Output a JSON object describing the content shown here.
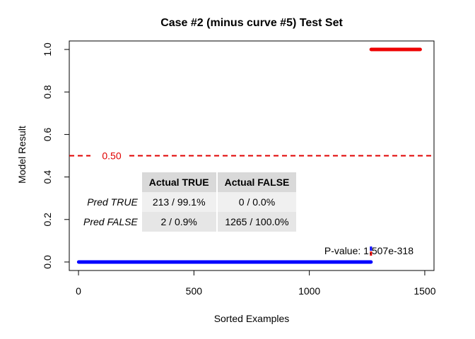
{
  "chart_data": {
    "type": "line",
    "title": "Case #2 (minus curve #5) Test Set",
    "xlabel": "Sorted Examples",
    "ylabel": "Model Result",
    "xlim": [
      -40,
      1540
    ],
    "ylim": [
      -0.04,
      1.04
    ],
    "x_ticks": [
      0,
      500,
      1000,
      1500
    ],
    "x_tick_labels": [
      "0",
      "500",
      "1000",
      "1500"
    ],
    "y_ticks": [
      0.0,
      0.2,
      0.4,
      0.6,
      0.8,
      1.0
    ],
    "y_tick_labels": [
      "0.0",
      "0.2",
      "0.4",
      "0.6",
      "0.8",
      "1.0"
    ],
    "grid": false,
    "series": [
      {
        "values": [
          [
            1,
            0.0
          ],
          [
            1267,
            0.0
          ]
        ],
        "color": "#0000ff"
      },
      {
        "values": [
          [
            1268,
            1.0
          ],
          [
            1480,
            1.0
          ]
        ],
        "color": "#ee0000"
      }
    ],
    "threshold": {
      "value": 0.5,
      "label": "0.50",
      "color": "#e00000"
    },
    "annotation": "P-value: 1.507e-318",
    "confusion_matrix": {
      "col_headers": [
        "Actual TRUE",
        "Actual FALSE"
      ],
      "rows": [
        {
          "label": "Pred TRUE",
          "cells": [
            "213 / 99.1%",
            "0 / 0.0%"
          ]
        },
        {
          "label": "Pred FALSE",
          "cells": [
            "2 / 0.9%",
            "1265 / 100.0%"
          ]
        }
      ]
    }
  }
}
